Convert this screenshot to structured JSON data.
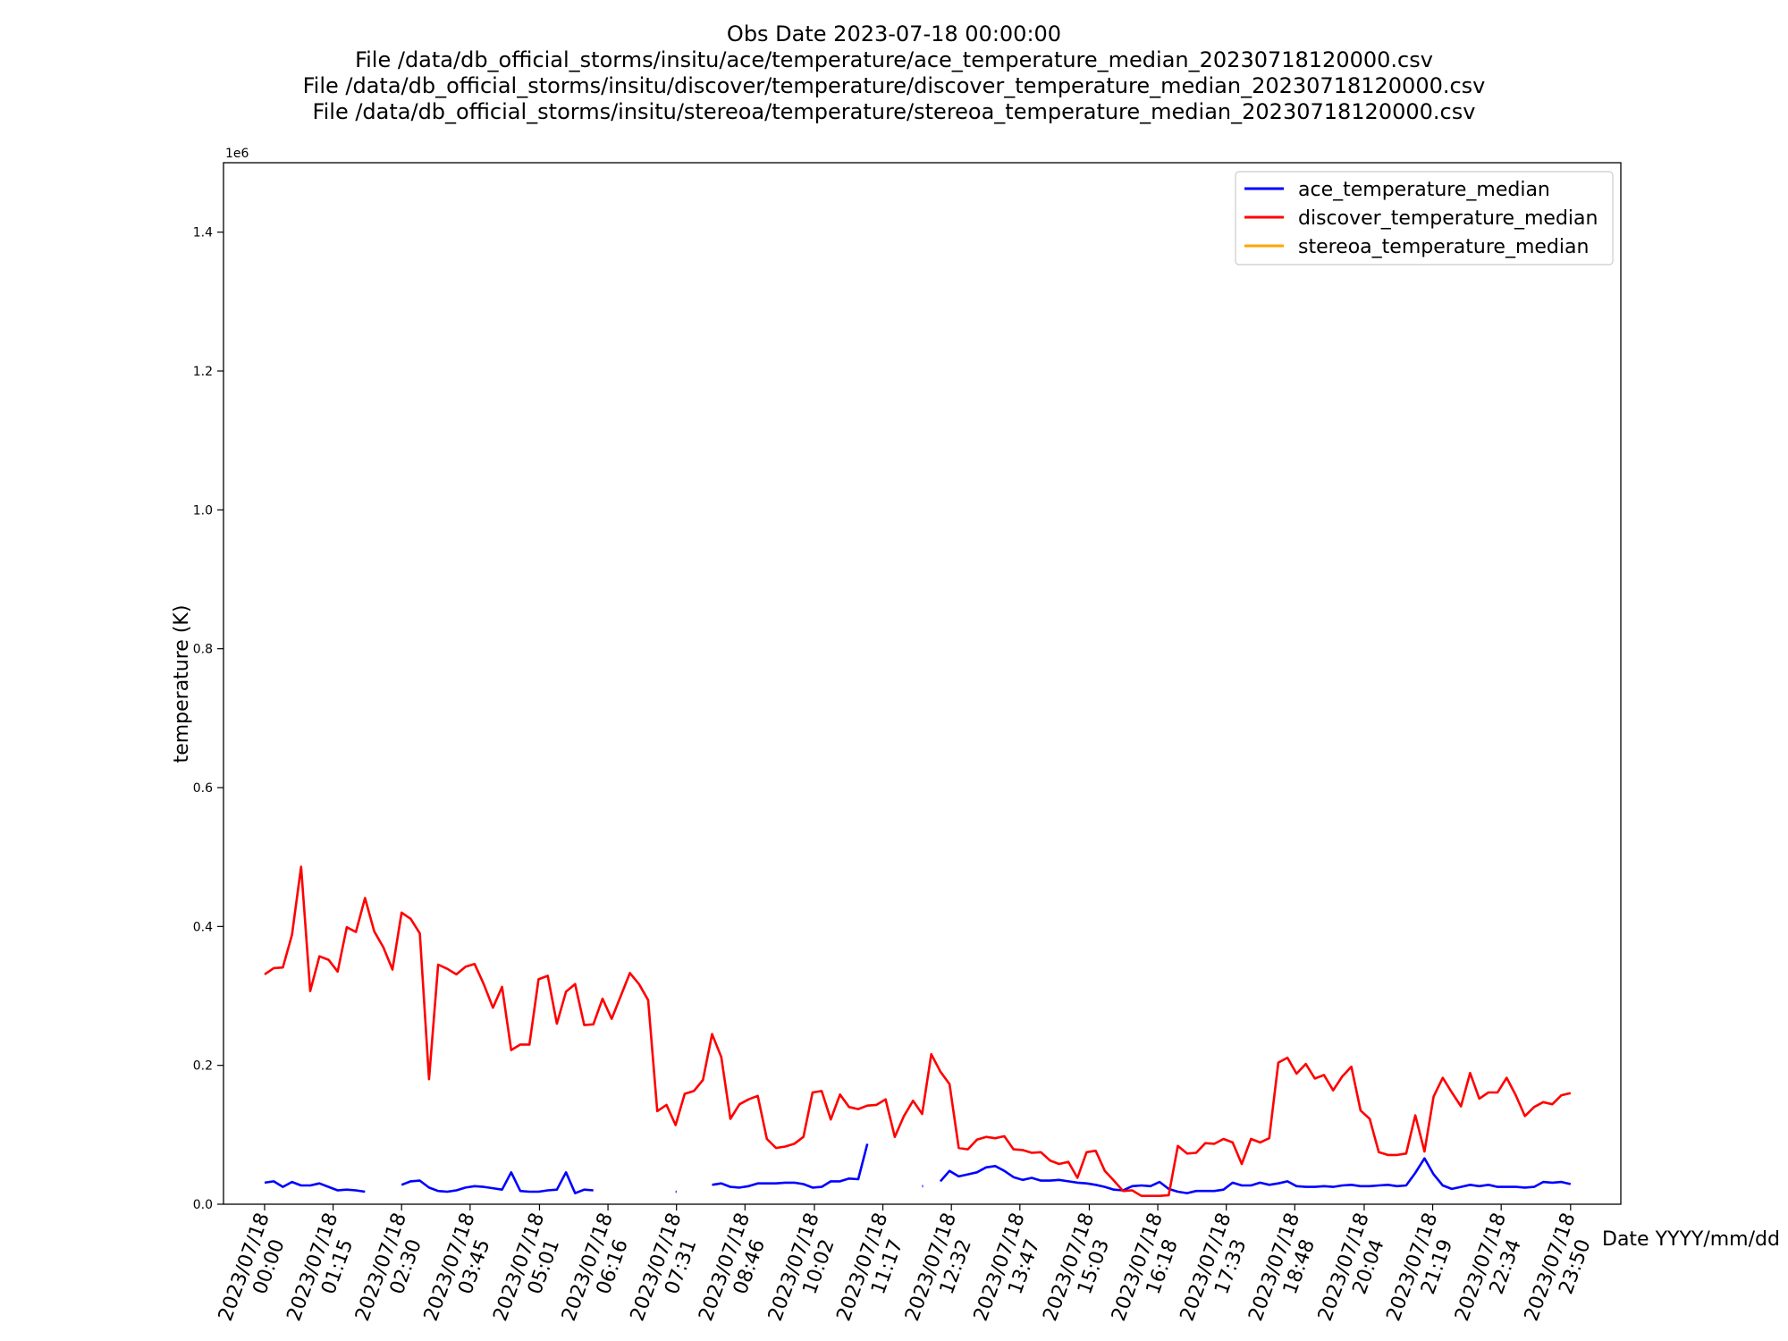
{
  "chart_data": {
    "type": "line",
    "title_lines": [
      "Obs Date 2023-07-18 00:00:00",
      "File /data/db_official_storms/insitu/ace/temperature/ace_temperature_median_20230718120000.csv",
      "File /data/db_official_storms/insitu/discover/temperature/discover_temperature_median_20230718120000.csv",
      "File /data/db_official_storms/insitu/stereoa/temperature/stereoa_temperature_median_20230718120000.csv"
    ],
    "xlabel": "Date YYYY/mm/dd",
    "ylabel": "temperature (K)",
    "y_offset_label": "1e6",
    "ylim": [
      0,
      1.5
    ],
    "y_unit_multiplier": 1000000,
    "yticks": [
      "0.0",
      "0.2",
      "0.4",
      "0.6",
      "0.8",
      "1.0",
      "1.2",
      "1.4"
    ],
    "xlim_minutes": [
      -45,
      1485
    ],
    "xtick_minutes": [
      0,
      75,
      150,
      225,
      301,
      376,
      451,
      526,
      602,
      677,
      752,
      827,
      903,
      978,
      1053,
      1128,
      1204,
      1279,
      1354,
      1430
    ],
    "xtick_labels": [
      [
        "2023/07/18",
        "00:00"
      ],
      [
        "2023/07/18",
        "01:15"
      ],
      [
        "2023/07/18",
        "02:30"
      ],
      [
        "2023/07/18",
        "03:45"
      ],
      [
        "2023/07/18",
        "05:01"
      ],
      [
        "2023/07/18",
        "06:16"
      ],
      [
        "2023/07/18",
        "07:31"
      ],
      [
        "2023/07/18",
        "08:46"
      ],
      [
        "2023/07/18",
        "10:02"
      ],
      [
        "2023/07/18",
        "11:17"
      ],
      [
        "2023/07/18",
        "12:32"
      ],
      [
        "2023/07/18",
        "13:47"
      ],
      [
        "2023/07/18",
        "15:03"
      ],
      [
        "2023/07/18",
        "16:18"
      ],
      [
        "2023/07/18",
        "17:33"
      ],
      [
        "2023/07/18",
        "18:48"
      ],
      [
        "2023/07/18",
        "20:04"
      ],
      [
        "2023/07/18",
        "21:19"
      ],
      [
        "2023/07/18",
        "22:34"
      ],
      [
        "2023/07/18",
        "23:50"
      ]
    ],
    "grid": false,
    "legend_position": "top-right",
    "series": [
      {
        "name": "ace_temperature_median",
        "color": "#0000ff",
        "points": [
          [
            0,
            0.031
          ],
          [
            10,
            0.033
          ],
          [
            20,
            0.025
          ],
          [
            30,
            0.032
          ],
          [
            40,
            0.027
          ],
          [
            50,
            0.027
          ],
          [
            60,
            0.03
          ],
          [
            70,
            0.025
          ],
          [
            80,
            0.02
          ],
          [
            90,
            0.021
          ],
          [
            100,
            0.02
          ],
          [
            110,
            0.018
          ],
          [
            150,
            0.028
          ],
          [
            160,
            0.033
          ],
          [
            170,
            0.034
          ],
          [
            180,
            0.024
          ],
          [
            190,
            0.019
          ],
          [
            200,
            0.018
          ],
          [
            210,
            0.02
          ],
          [
            220,
            0.024
          ],
          [
            230,
            0.026
          ],
          [
            240,
            0.025
          ],
          [
            250,
            0.023
          ],
          [
            260,
            0.021
          ],
          [
            270,
            0.046
          ],
          [
            280,
            0.019
          ],
          [
            290,
            0.018
          ],
          [
            300,
            0.018
          ],
          [
            310,
            0.02
          ],
          [
            320,
            0.021
          ],
          [
            330,
            0.046
          ],
          [
            340,
            0.016
          ],
          [
            350,
            0.021
          ],
          [
            360,
            0.02
          ],
          [
            450,
            0.018
          ],
          [
            451,
            0.018
          ],
          [
            490,
            0.028
          ],
          [
            500,
            0.03
          ],
          [
            510,
            0.025
          ],
          [
            520,
            0.024
          ],
          [
            530,
            0.026
          ],
          [
            540,
            0.03
          ],
          [
            550,
            0.03
          ],
          [
            560,
            0.03
          ],
          [
            570,
            0.031
          ],
          [
            580,
            0.031
          ],
          [
            590,
            0.029
          ],
          [
            600,
            0.024
          ],
          [
            610,
            0.025
          ],
          [
            620,
            0.033
          ],
          [
            630,
            0.033
          ],
          [
            640,
            0.037
          ],
          [
            650,
            0.036
          ],
          [
            660,
            0.087
          ],
          [
            720,
            0.026
          ],
          [
            721,
            0.026
          ],
          [
            740,
            0.033
          ],
          [
            750,
            0.048
          ],
          [
            760,
            0.04
          ],
          [
            770,
            0.043
          ],
          [
            780,
            0.046
          ],
          [
            790,
            0.053
          ],
          [
            800,
            0.055
          ],
          [
            810,
            0.048
          ],
          [
            820,
            0.039
          ],
          [
            830,
            0.035
          ],
          [
            840,
            0.038
          ],
          [
            850,
            0.034
          ],
          [
            860,
            0.034
          ],
          [
            870,
            0.035
          ],
          [
            880,
            0.033
          ],
          [
            890,
            0.031
          ],
          [
            900,
            0.03
          ],
          [
            910,
            0.028
          ],
          [
            920,
            0.025
          ],
          [
            930,
            0.021
          ],
          [
            940,
            0.02
          ],
          [
            950,
            0.026
          ],
          [
            960,
            0.027
          ],
          [
            970,
            0.026
          ],
          [
            980,
            0.032
          ],
          [
            990,
            0.022
          ],
          [
            1000,
            0.018
          ],
          [
            1010,
            0.016
          ],
          [
            1020,
            0.019
          ],
          [
            1030,
            0.019
          ],
          [
            1040,
            0.019
          ],
          [
            1050,
            0.021
          ],
          [
            1060,
            0.031
          ],
          [
            1070,
            0.027
          ],
          [
            1080,
            0.027
          ],
          [
            1090,
            0.031
          ],
          [
            1100,
            0.028
          ],
          [
            1110,
            0.03
          ],
          [
            1120,
            0.033
          ],
          [
            1130,
            0.026
          ],
          [
            1140,
            0.025
          ],
          [
            1150,
            0.025
          ],
          [
            1160,
            0.026
          ],
          [
            1170,
            0.025
          ],
          [
            1180,
            0.027
          ],
          [
            1190,
            0.028
          ],
          [
            1200,
            0.026
          ],
          [
            1210,
            0.026
          ],
          [
            1220,
            0.027
          ],
          [
            1230,
            0.028
          ],
          [
            1240,
            0.026
          ],
          [
            1250,
            0.027
          ],
          [
            1260,
            0.045
          ],
          [
            1270,
            0.066
          ],
          [
            1280,
            0.043
          ],
          [
            1290,
            0.027
          ],
          [
            1300,
            0.022
          ],
          [
            1310,
            0.025
          ],
          [
            1320,
            0.028
          ],
          [
            1330,
            0.026
          ],
          [
            1340,
            0.028
          ],
          [
            1350,
            0.025
          ],
          [
            1360,
            0.025
          ],
          [
            1370,
            0.025
          ],
          [
            1380,
            0.024
          ],
          [
            1390,
            0.025
          ],
          [
            1400,
            0.032
          ],
          [
            1410,
            0.031
          ],
          [
            1420,
            0.032
          ],
          [
            1430,
            0.029
          ]
        ]
      },
      {
        "name": "discover_temperature_median",
        "color": "#ff0000",
        "points": [
          [
            0,
            0.331
          ],
          [
            10,
            0.34
          ],
          [
            20,
            0.341
          ],
          [
            30,
            0.388
          ],
          [
            40,
            0.486
          ],
          [
            50,
            0.307
          ],
          [
            60,
            0.357
          ],
          [
            70,
            0.352
          ],
          [
            80,
            0.335
          ],
          [
            90,
            0.399
          ],
          [
            100,
            0.392
          ],
          [
            110,
            0.441
          ],
          [
            120,
            0.393
          ],
          [
            130,
            0.37
          ],
          [
            140,
            0.338
          ],
          [
            150,
            0.42
          ],
          [
            160,
            0.411
          ],
          [
            170,
            0.39
          ],
          [
            180,
            0.18
          ],
          [
            190,
            0.345
          ],
          [
            200,
            0.339
          ],
          [
            210,
            0.331
          ],
          [
            220,
            0.342
          ],
          [
            230,
            0.346
          ],
          [
            240,
            0.317
          ],
          [
            250,
            0.283
          ],
          [
            260,
            0.313
          ],
          [
            270,
            0.222
          ],
          [
            280,
            0.23
          ],
          [
            290,
            0.23
          ],
          [
            300,
            0.324
          ],
          [
            310,
            0.329
          ],
          [
            320,
            0.26
          ],
          [
            330,
            0.306
          ],
          [
            340,
            0.317
          ],
          [
            350,
            0.258
          ],
          [
            360,
            0.259
          ],
          [
            370,
            0.296
          ],
          [
            380,
            0.267
          ],
          [
            390,
            0.3
          ],
          [
            400,
            0.333
          ],
          [
            410,
            0.317
          ],
          [
            420,
            0.294
          ],
          [
            430,
            0.134
          ],
          [
            440,
            0.143
          ],
          [
            450,
            0.114
          ],
          [
            460,
            0.159
          ],
          [
            470,
            0.163
          ],
          [
            480,
            0.179
          ],
          [
            490,
            0.245
          ],
          [
            500,
            0.212
          ],
          [
            510,
            0.123
          ],
          [
            520,
            0.144
          ],
          [
            530,
            0.151
          ],
          [
            540,
            0.156
          ],
          [
            550,
            0.094
          ],
          [
            560,
            0.081
          ],
          [
            570,
            0.083
          ],
          [
            580,
            0.087
          ],
          [
            590,
            0.097
          ],
          [
            600,
            0.161
          ],
          [
            610,
            0.163
          ],
          [
            620,
            0.122
          ],
          [
            630,
            0.158
          ],
          [
            640,
            0.14
          ],
          [
            650,
            0.137
          ],
          [
            660,
            0.142
          ],
          [
            670,
            0.143
          ],
          [
            680,
            0.151
          ],
          [
            690,
            0.097
          ],
          [
            700,
            0.127
          ],
          [
            710,
            0.149
          ],
          [
            720,
            0.13
          ],
          [
            730,
            0.216
          ],
          [
            740,
            0.191
          ],
          [
            750,
            0.173
          ],
          [
            760,
            0.081
          ],
          [
            770,
            0.079
          ],
          [
            780,
            0.093
          ],
          [
            790,
            0.097
          ],
          [
            800,
            0.095
          ],
          [
            810,
            0.098
          ],
          [
            820,
            0.079
          ],
          [
            830,
            0.078
          ],
          [
            840,
            0.074
          ],
          [
            850,
            0.075
          ],
          [
            860,
            0.063
          ],
          [
            870,
            0.058
          ],
          [
            880,
            0.061
          ],
          [
            890,
            0.038
          ],
          [
            900,
            0.075
          ],
          [
            910,
            0.077
          ],
          [
            920,
            0.048
          ],
          [
            930,
            0.034
          ],
          [
            940,
            0.019
          ],
          [
            950,
            0.02
          ],
          [
            960,
            0.012
          ],
          [
            970,
            0.012
          ],
          [
            980,
            0.012
          ],
          [
            990,
            0.013
          ],
          [
            1000,
            0.084
          ],
          [
            1010,
            0.073
          ],
          [
            1020,
            0.074
          ],
          [
            1030,
            0.088
          ],
          [
            1040,
            0.087
          ],
          [
            1050,
            0.094
          ],
          [
            1060,
            0.089
          ],
          [
            1070,
            0.058
          ],
          [
            1080,
            0.094
          ],
          [
            1090,
            0.089
          ],
          [
            1100,
            0.095
          ],
          [
            1110,
            0.204
          ],
          [
            1120,
            0.211
          ],
          [
            1130,
            0.188
          ],
          [
            1140,
            0.202
          ],
          [
            1150,
            0.181
          ],
          [
            1160,
            0.186
          ],
          [
            1170,
            0.164
          ],
          [
            1180,
            0.184
          ],
          [
            1190,
            0.198
          ],
          [
            1200,
            0.135
          ],
          [
            1210,
            0.123
          ],
          [
            1220,
            0.075
          ],
          [
            1230,
            0.071
          ],
          [
            1240,
            0.071
          ],
          [
            1250,
            0.073
          ],
          [
            1260,
            0.128
          ],
          [
            1270,
            0.076
          ],
          [
            1280,
            0.155
          ],
          [
            1290,
            0.182
          ],
          [
            1300,
            0.161
          ],
          [
            1310,
            0.141
          ],
          [
            1320,
            0.189
          ],
          [
            1330,
            0.152
          ],
          [
            1340,
            0.161
          ],
          [
            1350,
            0.161
          ],
          [
            1360,
            0.182
          ],
          [
            1370,
            0.157
          ],
          [
            1380,
            0.127
          ],
          [
            1390,
            0.14
          ],
          [
            1400,
            0.147
          ],
          [
            1410,
            0.144
          ],
          [
            1420,
            0.157
          ],
          [
            1430,
            0.16
          ]
        ]
      },
      {
        "name": "stereoa_temperature_median",
        "color": "#ffa500",
        "points": []
      }
    ]
  }
}
